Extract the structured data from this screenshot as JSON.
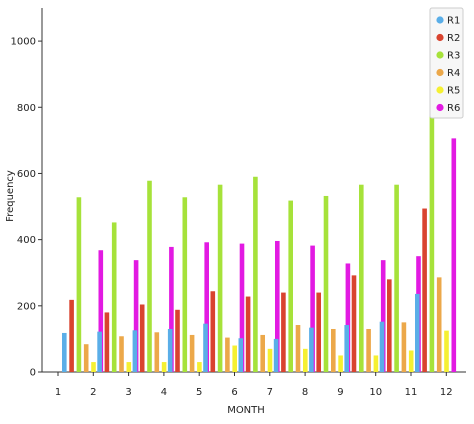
{
  "chart_data": {
    "type": "bar",
    "title": "",
    "xlabel": "MONTH",
    "ylabel": "Frequency",
    "ylim": [
      0,
      1100
    ],
    "yticks": [
      0,
      200,
      400,
      600,
      800,
      1000
    ],
    "xticks": [
      "1",
      "2",
      "3",
      "4",
      "5",
      "6",
      "7",
      "8",
      "9",
      "10",
      "11",
      "12"
    ],
    "categories": [
      "1",
      "2",
      "3",
      "4",
      "5",
      "6",
      "7",
      "8",
      "9",
      "10",
      "11"
    ],
    "legend_position": "top-right",
    "grid": false,
    "series": [
      {
        "name": "R1",
        "color": "#5aaee8",
        "values": [
          118,
          122,
          126,
          130,
          146,
          102,
          100,
          134,
          142,
          152,
          236
        ]
      },
      {
        "name": "R2",
        "color": "#d9432f",
        "values": [
          218,
          180,
          204,
          188,
          244,
          228,
          240,
          240,
          292,
          280,
          494
        ]
      },
      {
        "name": "R3",
        "color": "#a6e23a",
        "values": [
          528,
          452,
          578,
          528,
          566,
          590,
          518,
          532,
          566,
          566,
          1058
        ]
      },
      {
        "name": "R4",
        "color": "#eca84a",
        "values": [
          84,
          108,
          120,
          112,
          104,
          112,
          142,
          130,
          130,
          150,
          286
        ]
      },
      {
        "name": "R5",
        "color": "#f5f032",
        "values": [
          30,
          30,
          30,
          30,
          80,
          70,
          70,
          50,
          50,
          65,
          125
        ]
      },
      {
        "name": "R6",
        "color": "#e21ae2",
        "values": [
          368,
          338,
          378,
          392,
          388,
          396,
          382,
          328,
          338,
          350,
          706
        ]
      }
    ]
  }
}
